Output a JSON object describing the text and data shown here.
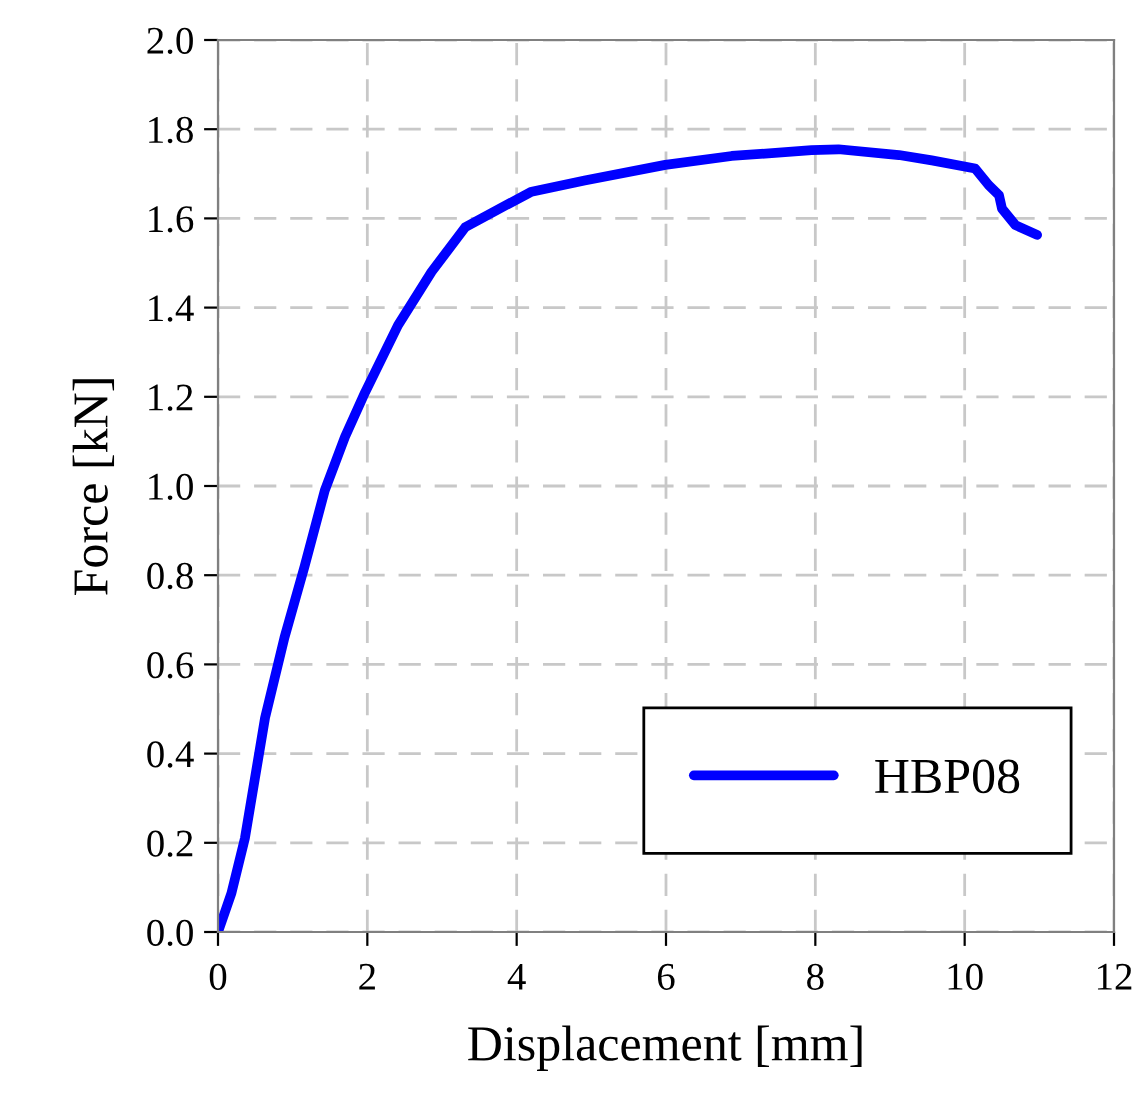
{
  "chart_data": {
    "type": "line",
    "xlabel": "Displacement [mm]",
    "ylabel": "Force [kN]",
    "xlim": [
      0,
      12
    ],
    "ylim": [
      0,
      2.0
    ],
    "xticks": [
      0,
      2,
      4,
      6,
      8,
      10,
      12
    ],
    "yticks": [
      {
        "value": 0,
        "label": "0.0"
      },
      {
        "value": 0.2,
        "label": "0.2"
      },
      {
        "value": 0.4,
        "label": "0.4"
      },
      {
        "value": 0.6,
        "label": "0.6"
      },
      {
        "value": 0.8,
        "label": "0.8"
      },
      {
        "value": 1.0,
        "label": "1.0"
      },
      {
        "value": 1.2,
        "label": "1.2"
      },
      {
        "value": 1.4,
        "label": "1.4"
      },
      {
        "value": 1.6,
        "label": "1.6"
      },
      {
        "value": 1.8,
        "label": "1.8"
      },
      {
        "value": 2.0,
        "label": "2.0"
      }
    ],
    "grid": true,
    "legend": "bottom right",
    "line_style": "solid",
    "marker": "none",
    "series": [
      {
        "name": "HBP08",
        "color": "#0000ff",
        "x": [
          0,
          0.18,
          0.36,
          0.63,
          0.89,
          1.16,
          1.43,
          1.7,
          1.97,
          2.41,
          2.86,
          3.31,
          3.75,
          4.2,
          4.91,
          5.99,
          6.88,
          7.95,
          8.31,
          9.12,
          9.56,
          10.14,
          10.32,
          10.46,
          10.5,
          10.68,
          10.97
        ],
        "values": [
          0,
          0.087,
          0.21,
          0.48,
          0.66,
          0.82,
          0.99,
          1.11,
          1.21,
          1.36,
          1.48,
          1.58,
          1.62,
          1.66,
          1.685,
          1.72,
          1.74,
          1.753,
          1.755,
          1.742,
          1.73,
          1.712,
          1.675,
          1.652,
          1.622,
          1.585,
          1.563
        ]
      }
    ]
  }
}
